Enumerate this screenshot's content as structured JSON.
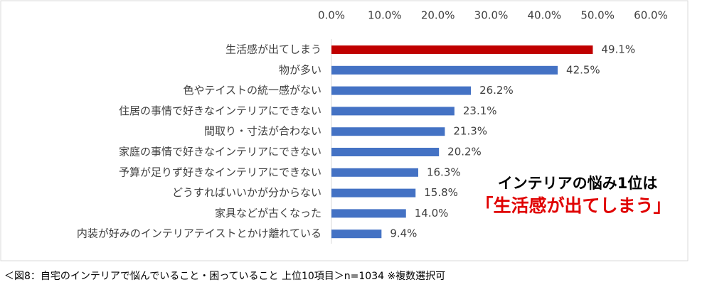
{
  "chart_data": {
    "type": "hbar",
    "categories": [
      "生活感が出てしまう",
      "物が多い",
      "色やテイストの統一感がない",
      "住居の事情で好きなインテリアにできない",
      "間取り・寸法が合わない",
      "家庭の事情で好きなインテリアにできない",
      "予算が足りず好きなインテリアにできない",
      "どうすればいいかが分からない",
      "家具などが古くなった",
      "内装が好みのインテリアテイストとかけ離れている"
    ],
    "values": [
      49.1,
      42.5,
      26.2,
      23.1,
      21.3,
      20.2,
      16.3,
      15.8,
      14.0,
      9.4
    ],
    "value_labels": [
      "49.1%",
      "42.5%",
      "26.2%",
      "23.1%",
      "21.3%",
      "20.2%",
      "16.3%",
      "15.8%",
      "14.0%",
      "9.4%"
    ],
    "colors": [
      "#c00000",
      "#4472c4",
      "#4472c4",
      "#4472c4",
      "#4472c4",
      "#4472c4",
      "#4472c4",
      "#4472c4",
      "#4472c4",
      "#4472c4"
    ],
    "xlim": [
      0,
      60
    ],
    "xticks": [
      {
        "value": 0,
        "label": "0.0%"
      },
      {
        "value": 10,
        "label": "10.0%"
      },
      {
        "value": 20,
        "label": "20.0%"
      },
      {
        "value": 30,
        "label": "30.0%"
      },
      {
        "value": 40,
        "label": "40.0%"
      },
      {
        "value": 50,
        "label": "50.0%"
      },
      {
        "value": 60,
        "label": "60.0%"
      }
    ],
    "annotations": [
      "インテリアの悩み1位は",
      "「生活感が出てしまう」"
    ],
    "caption": "＜図8：自宅のインテリアで悩んでいること・困っていること 上位10項目＞n=1034 ※複数選択可"
  }
}
